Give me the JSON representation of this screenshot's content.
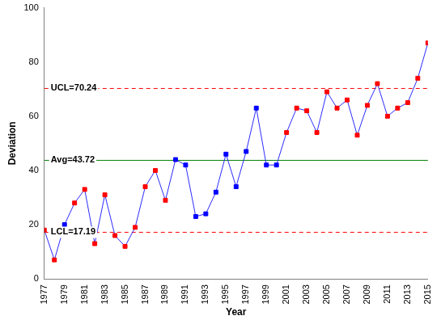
{
  "chart_data": {
    "type": "line",
    "x_label": "Year",
    "y_label": "Deviation",
    "categories": [
      "1977",
      null,
      "1979",
      null,
      "1981",
      null,
      "1983",
      null,
      "1985",
      null,
      "1987",
      null,
      "1989",
      null,
      "1991",
      null,
      "1993",
      null,
      "1995",
      null,
      "1997",
      null,
      "1999",
      null,
      "2001",
      null,
      "2003",
      null,
      "2005",
      null,
      "2007",
      null,
      "2009",
      null,
      "2011",
      null,
      "2013",
      null,
      "2015"
    ],
    "series": [
      {
        "name": "Deviation",
        "color": "#2b2bff",
        "marker": "square",
        "line_style": "solid",
        "values": [
          18,
          7,
          20,
          28,
          33,
          13,
          31,
          16,
          12,
          19,
          34,
          40,
          29,
          44,
          42,
          23,
          24,
          32,
          46,
          34,
          47,
          63,
          42,
          42,
          54,
          63,
          62,
          54,
          69,
          63,
          66,
          53,
          64,
          72,
          60,
          63,
          65,
          74,
          87
        ],
        "colors": [
          "#ff0000",
          "#ff0000",
          "#0000ff",
          "#ff0000",
          "#ff0000",
          "#ff0000",
          "#ff0000",
          "#ff0000",
          "#ff0000",
          "#ff0000",
          "#ff0000",
          "#ff0000",
          "#ff0000",
          "#0000ff",
          "#0000ff",
          "#0000ff",
          "#0000ff",
          "#0000ff",
          "#0000ff",
          "#0000ff",
          "#0000ff",
          "#0000ff",
          "#0000ff",
          "#0000ff",
          "#ff0000",
          "#ff0000",
          "#ff0000",
          "#ff0000",
          "#ff0000",
          "#ff0000",
          "#ff0000",
          "#ff0000",
          "#ff0000",
          "#ff0000",
          "#ff0000",
          "#ff0000",
          "#ff0000",
          "#ff0000",
          "#ff0000"
        ]
      }
    ],
    "annotations": [
      {
        "label": "UCL=70.24",
        "value": 70.24,
        "color": "#ff0000",
        "line_style": "dashed"
      },
      {
        "label": "Avg=43.72",
        "value": 43.72,
        "color": "#008000",
        "line_style": "solid"
      },
      {
        "label": "LCL=17.19",
        "value": 17.19,
        "color": "#ff0000",
        "line_style": "dashed"
      }
    ],
    "ylim": [
      0,
      100
    ],
    "yticks": [
      0,
      20,
      40,
      60,
      80,
      100
    ],
    "grid": false,
    "legend": null
  }
}
